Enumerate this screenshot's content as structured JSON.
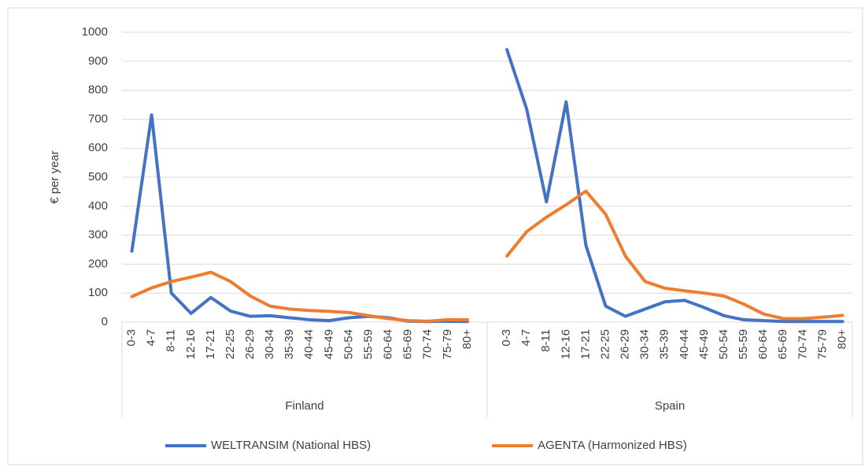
{
  "chart_data": {
    "type": "line",
    "y_label": "€ per year",
    "groups": [
      {
        "name": "Finland",
        "categories": [
          "0-3",
          "4-7",
          "8-11",
          "12-16",
          "17-21",
          "22-25",
          "26-29",
          "30-34",
          "35-39",
          "40-44",
          "45-49",
          "50-54",
          "55-59",
          "60-64",
          "65-69",
          "70-74",
          "75-79",
          "80+"
        ]
      },
      {
        "name": "Spain",
        "categories": [
          "0-3",
          "4-7",
          "8-11",
          "12-16",
          "17-21",
          "22-25",
          "26-29",
          "30-34",
          "35-39",
          "40-44",
          "45-49",
          "50-54",
          "55-59",
          "60-64",
          "65-69",
          "70-74",
          "75-79",
          "80+"
        ]
      }
    ],
    "series": [
      {
        "name": "WELTRANSIM (National HBS)",
        "color": "#4472c4",
        "values": [
          [
            245,
            715,
            100,
            30,
            85,
            38,
            20,
            22,
            15,
            8,
            5,
            15,
            20,
            15,
            3,
            2,
            3,
            2
          ],
          [
            940,
            735,
            415,
            760,
            265,
            55,
            20,
            45,
            70,
            75,
            50,
            22,
            8,
            5,
            2,
            2,
            2,
            2
          ]
        ]
      },
      {
        "name": "AGENTA (Harmonized HBS)",
        "color": "#ed7d31",
        "values": [
          [
            88,
            118,
            140,
            155,
            172,
            140,
            90,
            55,
            45,
            40,
            37,
            33,
            22,
            12,
            5,
            3,
            8,
            8
          ],
          [
            228,
            312,
            362,
            405,
            452,
            372,
            228,
            140,
            117,
            108,
            100,
            90,
            62,
            28,
            12,
            12,
            17,
            23
          ]
        ]
      }
    ],
    "ylim": [
      0,
      1000
    ],
    "yticks": [
      0,
      100,
      200,
      300,
      400,
      500,
      600,
      700,
      800,
      900,
      1000
    ],
    "grid": true
  }
}
